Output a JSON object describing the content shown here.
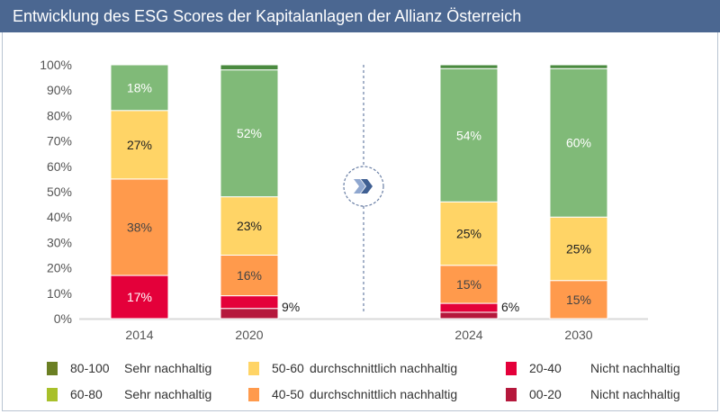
{
  "title": "Entwicklung des ESG Scores der Kapitalanlagen der Allianz Österreich",
  "chart_data": {
    "type": "stacked-bar",
    "categories": [
      "2014",
      "2020",
      "2024",
      "2030"
    ],
    "ylim": [
      0,
      100
    ],
    "yticks": [
      "0%",
      "10%",
      "20%",
      "30%",
      "40%",
      "50%",
      "60%",
      "70%",
      "80%",
      "90%",
      "100%"
    ],
    "grid": false,
    "legend_position": "bottom",
    "series": [
      {
        "name": "00-20 Nicht nachhaltig",
        "color": "#b5183c",
        "values": [
          0,
          4,
          2.5,
          0
        ]
      },
      {
        "name": "20-40 Nicht nachhaltig",
        "color": "#e4003a",
        "values": [
          17,
          5,
          3.5,
          0
        ]
      },
      {
        "name": "40-50 durchschnittlich nachhaltig",
        "color": "#ff9a4c",
        "values": [
          38,
          16,
          15,
          15
        ]
      },
      {
        "name": "50-60 durchschnittlich nachhaltig",
        "color": "#ffd466",
        "values": [
          27,
          23,
          25,
          25
        ]
      },
      {
        "name": "60-80 Sehr nachhaltig",
        "color": "#80ba78",
        "values": [
          18,
          50,
          52.5,
          58.5
        ]
      },
      {
        "name": "80-100 Sehr nachhaltig",
        "color": "#4a8a3f",
        "values": [
          0,
          2,
          1.5,
          1.5
        ]
      }
    ],
    "data_labels": [
      {
        "category": "2014",
        "series": "20-40 Nicht nachhaltig",
        "text": "17%",
        "color": "#ffffff"
      },
      {
        "category": "2014",
        "series": "40-50 durchschnittlich nachhaltig",
        "text": "38%",
        "color": "#444444"
      },
      {
        "category": "2014",
        "series": "50-60 durchschnittlich nachhaltig",
        "text": "27%",
        "color": "#222222"
      },
      {
        "category": "2014",
        "series": "60-80 Sehr nachhaltig",
        "text": "18%",
        "color": "#ffffff"
      },
      {
        "category": "2020",
        "series": "40-50 durchschnittlich nachhaltig",
        "text": "16%",
        "color": "#444444"
      },
      {
        "category": "2020",
        "series": "50-60 durchschnittlich nachhaltig",
        "text": "23%",
        "color": "#222222"
      },
      {
        "category": "2020",
        "series": "60-80 Sehr nachhaltig",
        "text": "52%",
        "color": "#ffffff"
      },
      {
        "category": "2024",
        "series": "40-50 durchschnittlich nachhaltig",
        "text": "15%",
        "color": "#444444"
      },
      {
        "category": "2024",
        "series": "50-60 durchschnittlich nachhaltig",
        "text": "25%",
        "color": "#222222"
      },
      {
        "category": "2024",
        "series": "60-80 Sehr nachhaltig",
        "text": "54%",
        "color": "#ffffff"
      },
      {
        "category": "2030",
        "series": "40-50 durchschnittlich nachhaltig",
        "text": "15%",
        "color": "#444444"
      },
      {
        "category": "2030",
        "series": "50-60 durchschnittlich nachhaltig",
        "text": "25%",
        "color": "#222222"
      },
      {
        "category": "2030",
        "series": "60-80 Sehr nachhaltig",
        "text": "60%",
        "color": "#ffffff"
      }
    ],
    "side_labels": [
      {
        "category": "2020",
        "text": "9%"
      },
      {
        "category": "2024",
        "text": "6%"
      }
    ],
    "divider_icon": "double-chevron-right-icon"
  },
  "legend": [
    {
      "range": "80-100",
      "label": "Sehr nachhaltig",
      "color": "#6b7f23"
    },
    {
      "range": "60-80",
      "label": "Sehr nachhaltig",
      "color": "#a8c02a"
    },
    {
      "range": "50-60",
      "label": "durchschnittlich nachhaltig",
      "color": "#ffd466"
    },
    {
      "range": "40-50",
      "label": "durchschnittlich nachhaltig",
      "color": "#ff9a4c"
    },
    {
      "range": "20-40",
      "label": "Nicht nachhaltig",
      "color": "#e4003a"
    },
    {
      "range": "00-20",
      "label": "Nicht nachhaltig",
      "color": "#b5183c"
    }
  ]
}
